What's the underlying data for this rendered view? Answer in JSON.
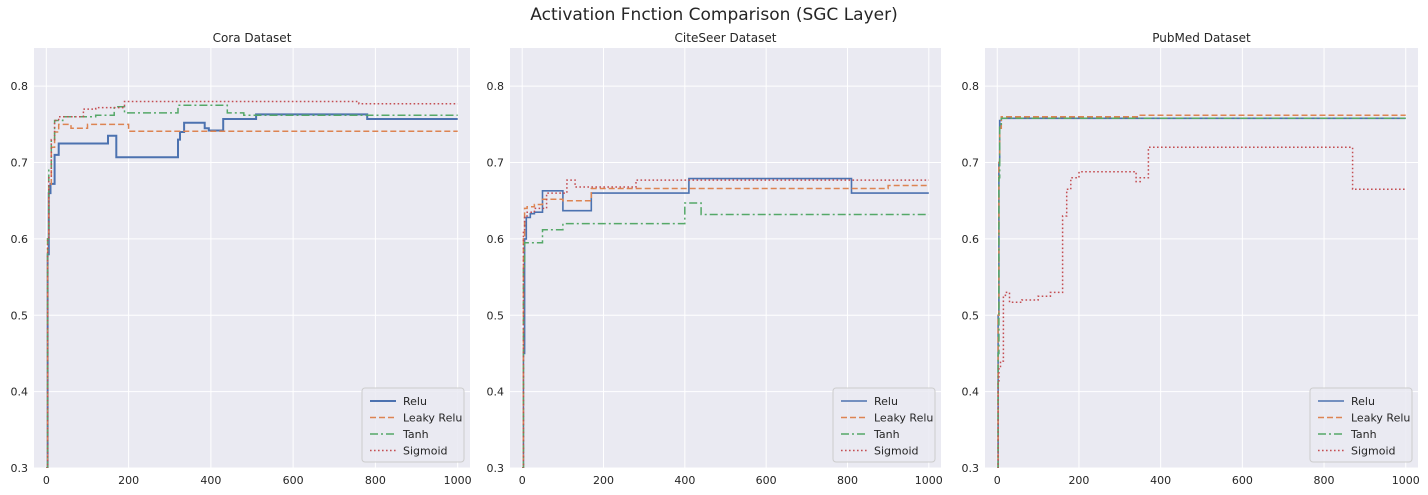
{
  "suptitle": "Activation Fnction Comparison  (SGC Layer)",
  "colors": {
    "background": "#eaeaf2",
    "grid": "#ffffff",
    "Relu": "#4c72b0",
    "Leaky Relu": "#dd8452",
    "Tanh": "#55a868",
    "Sigmoid": "#c44e52"
  },
  "chart_data": [
    {
      "type": "line",
      "title": "Cora Dataset",
      "xlabel": "",
      "ylabel": "",
      "xlim": [
        -30,
        1030
      ],
      "ylim": [
        0.3,
        0.85
      ],
      "xticks": [
        0,
        200,
        400,
        600,
        800,
        1000
      ],
      "yticks": [
        0.3,
        0.4,
        0.5,
        0.6,
        0.7,
        0.8
      ],
      "grid": true,
      "legend": "lower-right",
      "step": true,
      "series": [
        {
          "name": "Relu",
          "style": "solid",
          "x": [
            0,
            3,
            6,
            10,
            20,
            30,
            150,
            170,
            320,
            325,
            335,
            385,
            395,
            430,
            510,
            780,
            1000
          ],
          "y": [
            0.3,
            0.58,
            0.66,
            0.672,
            0.71,
            0.725,
            0.735,
            0.707,
            0.73,
            0.74,
            0.752,
            0.745,
            0.742,
            0.757,
            0.763,
            0.757,
            0.757
          ]
        },
        {
          "name": "Leaky Relu",
          "style": "dashed",
          "x": [
            0,
            3,
            6,
            12,
            20,
            30,
            60,
            100,
            200,
            1000
          ],
          "y": [
            0.3,
            0.6,
            0.67,
            0.72,
            0.74,
            0.75,
            0.745,
            0.75,
            0.741,
            0.741
          ]
        },
        {
          "name": "Tanh",
          "style": "dashdot",
          "x": [
            0,
            3,
            6,
            12,
            20,
            40,
            120,
            165,
            190,
            320,
            440,
            480,
            1000
          ],
          "y": [
            0.3,
            0.6,
            0.69,
            0.73,
            0.755,
            0.76,
            0.762,
            0.773,
            0.765,
            0.775,
            0.765,
            0.762,
            0.762
          ]
        },
        {
          "name": "Sigmoid",
          "style": "dotted",
          "x": [
            0,
            3,
            6,
            12,
            20,
            30,
            90,
            120,
            190,
            740,
            760,
            1000
          ],
          "y": [
            0.3,
            0.6,
            0.68,
            0.73,
            0.755,
            0.76,
            0.77,
            0.772,
            0.78,
            0.78,
            0.777,
            0.777
          ]
        }
      ]
    },
    {
      "type": "line",
      "title": "CiteSeer Dataset",
      "xlabel": "",
      "ylabel": "",
      "xlim": [
        -30,
        1030
      ],
      "ylim": [
        0.3,
        0.85
      ],
      "xticks": [
        0,
        200,
        400,
        600,
        800,
        1000
      ],
      "yticks": [
        0.3,
        0.4,
        0.5,
        0.6,
        0.7,
        0.8
      ],
      "grid": true,
      "legend": "lower-right",
      "step": true,
      "series": [
        {
          "name": "Relu",
          "style": "solid",
          "x": [
            0,
            3,
            6,
            10,
            20,
            30,
            50,
            100,
            170,
            410,
            810,
            1000
          ],
          "y": [
            0.3,
            0.45,
            0.6,
            0.628,
            0.633,
            0.635,
            0.663,
            0.637,
            0.66,
            0.679,
            0.66,
            0.66
          ]
        },
        {
          "name": "Leaky Relu",
          "style": "dashed",
          "x": [
            0,
            3,
            6,
            12,
            30,
            50,
            100,
            170,
            400,
            900,
            1000
          ],
          "y": [
            0.3,
            0.6,
            0.64,
            0.642,
            0.645,
            0.652,
            0.65,
            0.666,
            0.666,
            0.67,
            0.67
          ]
        },
        {
          "name": "Tanh",
          "style": "dashdot",
          "x": [
            0,
            3,
            6,
            10,
            50,
            100,
            400,
            440,
            1000
          ],
          "y": [
            0.3,
            0.56,
            0.595,
            0.595,
            0.612,
            0.62,
            0.647,
            0.632,
            0.632
          ]
        },
        {
          "name": "Sigmoid",
          "style": "dotted",
          "x": [
            0,
            3,
            6,
            12,
            30,
            60,
            110,
            130,
            280,
            1000
          ],
          "y": [
            0.3,
            0.61,
            0.63,
            0.635,
            0.64,
            0.66,
            0.677,
            0.668,
            0.677,
            0.677
          ]
        }
      ]
    },
    {
      "type": "line",
      "title": "PubMed Dataset",
      "xlabel": "",
      "ylabel": "",
      "xlim": [
        -30,
        1030
      ],
      "ylim": [
        0.3,
        0.85
      ],
      "xticks": [
        0,
        200,
        400,
        600,
        800,
        1000
      ],
      "yticks": [
        0.3,
        0.4,
        0.5,
        0.6,
        0.7,
        0.8
      ],
      "grid": true,
      "legend": "lower-right",
      "step": true,
      "series": [
        {
          "name": "Relu",
          "style": "solid",
          "x": [
            0,
            2,
            4,
            6,
            10,
            1000
          ],
          "y": [
            0.3,
            0.5,
            0.7,
            0.755,
            0.758,
            0.758
          ]
        },
        {
          "name": "Leaky Relu",
          "style": "dashed",
          "x": [
            0,
            2,
            4,
            6,
            10,
            350,
            1000
          ],
          "y": [
            0.3,
            0.5,
            0.7,
            0.745,
            0.76,
            0.762,
            0.762
          ]
        },
        {
          "name": "Tanh",
          "style": "dashdot",
          "x": [
            0,
            2,
            4,
            6,
            10,
            1000
          ],
          "y": [
            0.3,
            0.45,
            0.68,
            0.75,
            0.758,
            0.758
          ]
        },
        {
          "name": "Sigmoid",
          "style": "dotted",
          "x": [
            0,
            2,
            4,
            8,
            15,
            20,
            30,
            60,
            100,
            130,
            160,
            170,
            180,
            200,
            340,
            350,
            370,
            860,
            870,
            1000
          ],
          "y": [
            0.3,
            0.41,
            0.43,
            0.44,
            0.525,
            0.53,
            0.517,
            0.52,
            0.525,
            0.53,
            0.63,
            0.665,
            0.68,
            0.688,
            0.675,
            0.68,
            0.72,
            0.72,
            0.665,
            0.665
          ]
        }
      ]
    }
  ]
}
